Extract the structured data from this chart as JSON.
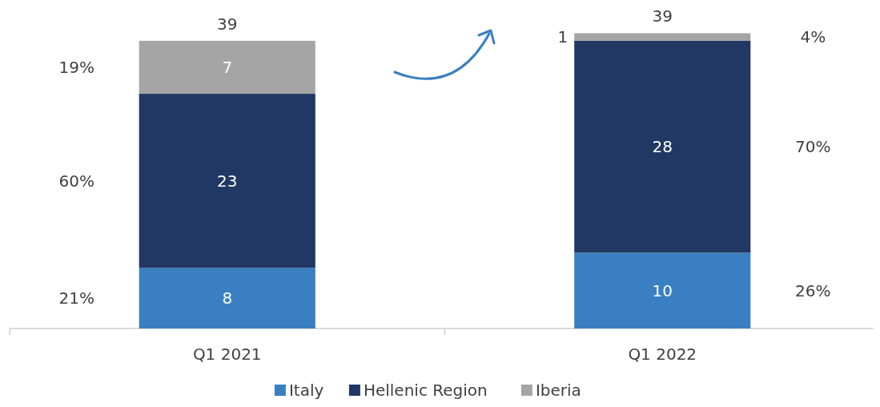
{
  "chart_data": {
    "type": "bar",
    "stacked": true,
    "categories": [
      "Q1 2021",
      "Q1 2022"
    ],
    "series": [
      {
        "name": "Italy",
        "color": "#3a7fc1",
        "values": [
          8,
          10
        ]
      },
      {
        "name": "Hellenic Region",
        "color": "#213864",
        "values": [
          23,
          28
        ]
      },
      {
        "name": "Iberia",
        "color": "#a5a5a5",
        "values": [
          7,
          1
        ]
      }
    ],
    "data_labels": true,
    "totals": [
      "39",
      "39"
    ],
    "legend": "bottom",
    "annotations": [
      "21%",
      "60%",
      "19%",
      "26%",
      "70%",
      "4%"
    ]
  }
}
